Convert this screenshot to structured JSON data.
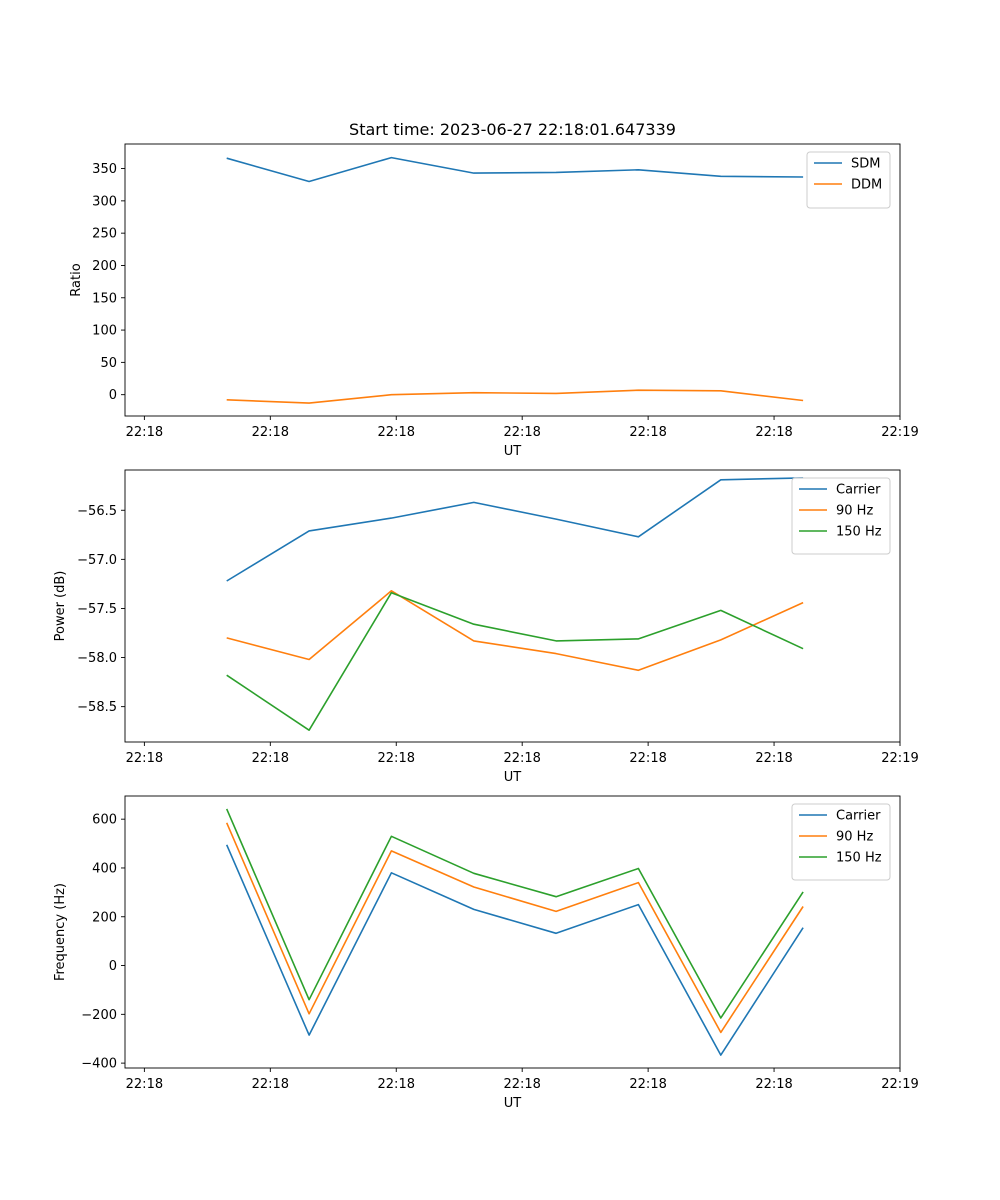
{
  "figure_title": "Start time: 2023-06-27 22:18:01.647339",
  "chart_data": [
    {
      "type": "line",
      "title": "Start time: 2023-06-27 22:18:01.647339",
      "xlabel": "UT",
      "ylabel": "Ratio",
      "x": [
        1.7,
        3.4,
        5.1,
        6.8,
        8.5,
        10.2,
        11.9,
        13.6
      ],
      "xlim": [
        -0.4,
        15.6
      ],
      "xticks": [
        {
          "value": 0,
          "label": "22:18"
        },
        {
          "value": 2.6,
          "label": "22:18"
        },
        {
          "value": 5.2,
          "label": "22:18"
        },
        {
          "value": 7.8,
          "label": "22:18"
        },
        {
          "value": 10.4,
          "label": "22:18"
        },
        {
          "value": 13.0,
          "label": "22:18"
        },
        {
          "value": 15.6,
          "label": "22:19"
        }
      ],
      "ylim": [
        -33,
        388
      ],
      "yticks": [
        0,
        50,
        100,
        150,
        200,
        250,
        300,
        350
      ],
      "legend": "top-right",
      "grid": false,
      "series": [
        {
          "name": "SDM",
          "color": "#1f77b4",
          "values": [
            366,
            330,
            367,
            343,
            344,
            348,
            338,
            337
          ]
        },
        {
          "name": "DDM",
          "color": "#ff7f0e",
          "values": [
            -8,
            -13,
            0,
            3,
            2,
            7,
            6,
            -9
          ]
        }
      ]
    },
    {
      "type": "line",
      "xlabel": "UT",
      "ylabel": "Power (dB)",
      "x": [
        1.7,
        3.4,
        5.1,
        6.8,
        8.5,
        10.2,
        11.9,
        13.6
      ],
      "xlim": [
        -0.4,
        15.6
      ],
      "xticks": [
        {
          "value": 0,
          "label": "22:18"
        },
        {
          "value": 2.6,
          "label": "22:18"
        },
        {
          "value": 5.2,
          "label": "22:18"
        },
        {
          "value": 7.8,
          "label": "22:18"
        },
        {
          "value": 10.4,
          "label": "22:18"
        },
        {
          "value": 13.0,
          "label": "22:18"
        },
        {
          "value": 15.6,
          "label": "22:19"
        }
      ],
      "ylim": [
        -58.86,
        -56.09
      ],
      "yticks": [
        -58.5,
        -58.0,
        -57.5,
        -57.0,
        -56.5
      ],
      "ytick_labels": [
        "−58.5",
        "−58.0",
        "−57.5",
        "−57.0",
        "−56.5"
      ],
      "legend": "top-right",
      "grid": false,
      "series": [
        {
          "name": "Carrier",
          "color": "#1f77b4",
          "values": [
            -57.22,
            -56.71,
            -56.58,
            -56.42,
            -56.59,
            -56.77,
            -56.19,
            -56.17
          ]
        },
        {
          "name": "90 Hz",
          "color": "#ff7f0e",
          "values": [
            -57.8,
            -58.02,
            -57.32,
            -57.83,
            -57.96,
            -58.13,
            -57.82,
            -57.44
          ]
        },
        {
          "name": "150 Hz",
          "color": "#2ca02c",
          "values": [
            -58.18,
            -58.74,
            -57.34,
            -57.66,
            -57.83,
            -57.81,
            -57.52,
            -57.91
          ]
        }
      ]
    },
    {
      "type": "line",
      "xlabel": "UT",
      "ylabel": "Frequency (Hz)",
      "x": [
        1.7,
        3.4,
        5.1,
        6.8,
        8.5,
        10.2,
        11.9,
        13.6
      ],
      "xlim": [
        -0.4,
        15.6
      ],
      "xticks": [
        {
          "value": 0,
          "label": "22:18"
        },
        {
          "value": 2.6,
          "label": "22:18"
        },
        {
          "value": 5.2,
          "label": "22:18"
        },
        {
          "value": 7.8,
          "label": "22:18"
        },
        {
          "value": 10.4,
          "label": "22:18"
        },
        {
          "value": 13.0,
          "label": "22:18"
        },
        {
          "value": 15.6,
          "label": "22:19"
        }
      ],
      "ylim": [
        -420,
        695
      ],
      "yticks": [
        -400,
        -200,
        0,
        200,
        400,
        600
      ],
      "ytick_labels": [
        "−400",
        "−200",
        "0",
        "200",
        "400",
        "600"
      ],
      "legend": "top-right",
      "grid": false,
      "series": [
        {
          "name": "Carrier",
          "color": "#1f77b4",
          "values": [
            495,
            -285,
            380,
            230,
            132,
            250,
            -367,
            155
          ]
        },
        {
          "name": "90 Hz",
          "color": "#ff7f0e",
          "values": [
            585,
            -198,
            470,
            322,
            222,
            340,
            -274,
            242
          ]
        },
        {
          "name": "150 Hz",
          "color": "#2ca02c",
          "values": [
            642,
            -140,
            530,
            378,
            282,
            398,
            -215,
            302
          ]
        }
      ]
    }
  ]
}
